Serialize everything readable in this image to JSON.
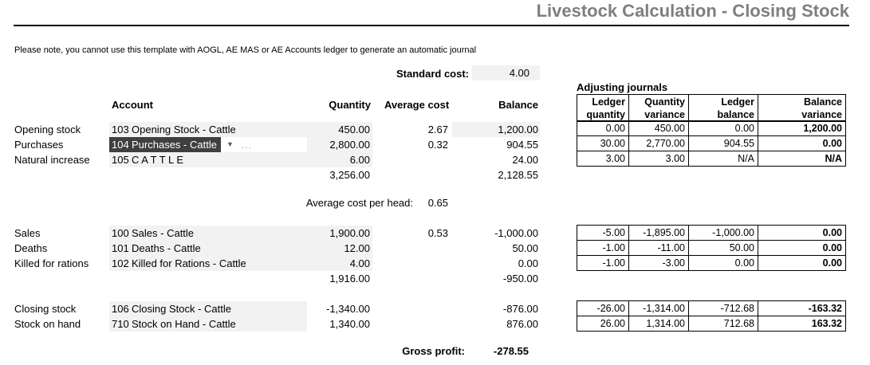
{
  "title": "Livestock Calculation - Closing Stock",
  "note": "Please note, you cannot use this template with AOGL, AE MAS or AE Accounts ledger to generate an automatic journal",
  "standard_cost": {
    "label": "Standard cost:",
    "value": "4.00"
  },
  "average_cost_per_head": {
    "label": "Average cost per head:",
    "value": "0.65"
  },
  "gross_profit": {
    "label": "Gross profit:",
    "value": "-278.55"
  },
  "columns": {
    "account": "Account",
    "quantity": "Quantity",
    "average_cost": "Average cost",
    "balance": "Balance"
  },
  "adjusting_journals": {
    "title": "Adjusting journals",
    "columns": [
      "Ledger quantity",
      "Quantity variance",
      "Ledger balance",
      "Balance variance"
    ]
  },
  "icons": {
    "dropdown": "▼",
    "more": "..."
  },
  "colors": {
    "selection_bg": "#3f3f3f",
    "shaded_cell": "#f2f2f2",
    "title_gray": "#7f7f7f"
  },
  "blocks": [
    {
      "quantity_shaded": true,
      "rows": [
        {
          "label": "Opening stock",
          "code": "103",
          "account": "Opening Stock - Cattle",
          "quantity": "450.00",
          "average_cost": "2.67",
          "balance": "1,200.00",
          "balance_shaded": true,
          "adjusting": [
            "0.00",
            "450.00",
            "0.00",
            "1,200.00"
          ]
        },
        {
          "label": "Purchases",
          "code": "104",
          "account": "Purchases - Cattle",
          "selected": true,
          "quantity": "2,800.00",
          "average_cost": "0.32",
          "balance": "904.55",
          "adjusting": [
            "30.00",
            "2,770.00",
            "904.55",
            "0.00"
          ]
        },
        {
          "label": "Natural increase",
          "code": "105",
          "account": "C A T T L E",
          "quantity": "6.00",
          "balance": "24.00",
          "adjusting": [
            "3.00",
            "3.00",
            "N/A",
            "N/A"
          ]
        }
      ],
      "total": {
        "quantity": "3,256.00",
        "balance": "2,128.55"
      }
    },
    {
      "quantity_shaded": true,
      "rows": [
        {
          "label": "Sales",
          "code": "100",
          "account": "Sales - Cattle",
          "quantity": "1,900.00",
          "average_cost": "0.53",
          "balance": "-1,000.00",
          "adjusting": [
            "-5.00",
            "-1,895.00",
            "-1,000.00",
            "0.00"
          ]
        },
        {
          "label": "Deaths",
          "code": "101",
          "account": "Deaths - Cattle",
          "quantity": "12.00",
          "balance": "50.00",
          "adjusting": [
            "-1.00",
            "-11.00",
            "50.00",
            "0.00"
          ]
        },
        {
          "label": "Killed for rations",
          "code": "102",
          "account": "Killed for Rations - Cattle",
          "quantity": "4.00",
          "balance": "0.00",
          "adjusting": [
            "-1.00",
            "-3.00",
            "0.00",
            "0.00"
          ]
        }
      ],
      "total": {
        "quantity": "1,916.00",
        "balance": "-950.00"
      }
    },
    {
      "quantity_shaded": false,
      "rows": [
        {
          "label": "Closing stock",
          "code": "106",
          "account": "Closing Stock - Cattle",
          "quantity": "-1,340.00",
          "balance": "-876.00",
          "adjusting": [
            "-26.00",
            "-1,314.00",
            "-712.68",
            "-163.32"
          ]
        },
        {
          "label": "Stock on hand",
          "code": "710",
          "account": "Stock on Hand - Cattle",
          "quantity": "1,340.00",
          "balance": "876.00",
          "adjusting": [
            "26.00",
            "1,314.00",
            "712.68",
            "163.32"
          ]
        }
      ],
      "total": null
    }
  ]
}
